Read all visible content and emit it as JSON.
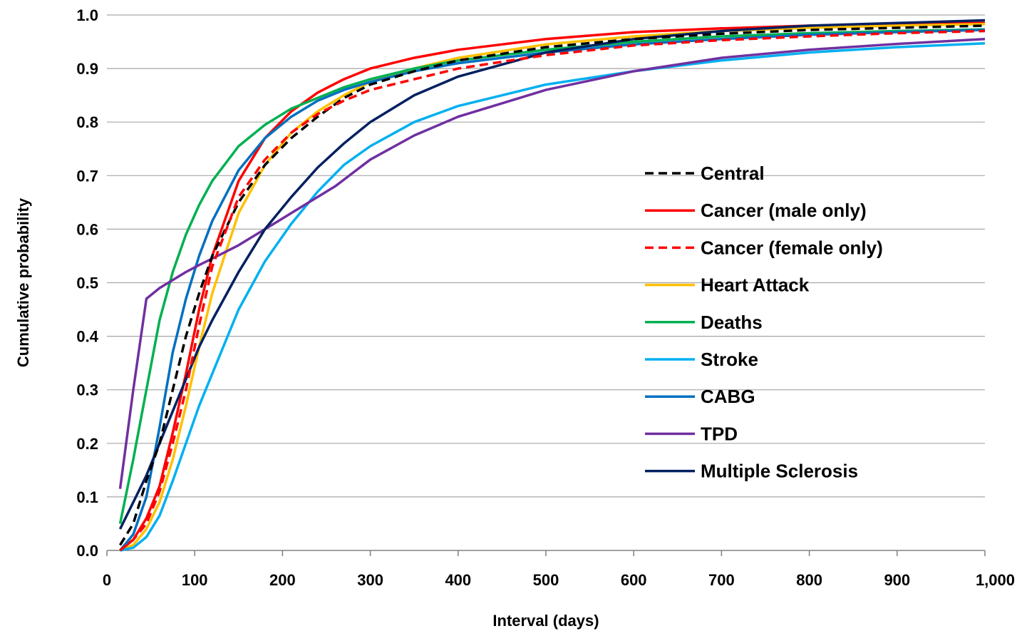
{
  "chart_data": {
    "type": "line",
    "title": "",
    "xlabel": "Interval (days)",
    "ylabel": "Cumulative probability",
    "xlim": [
      0,
      1000
    ],
    "ylim": [
      0,
      1.0
    ],
    "x_ticks": [
      "0",
      "100",
      "200",
      "300",
      "400",
      "500",
      "600",
      "700",
      "800",
      "900",
      "1,000"
    ],
    "y_ticks": [
      "0.0",
      "0.1",
      "0.2",
      "0.3",
      "0.4",
      "0.5",
      "0.6",
      "0.7",
      "0.8",
      "0.9",
      "1.0"
    ],
    "grid": "horizontal",
    "legend_position": "right",
    "series": [
      {
        "name": "Central",
        "color": "#000000",
        "dash": "dashed",
        "points": [
          [
            15,
            0.01
          ],
          [
            30,
            0.05
          ],
          [
            45,
            0.13
          ],
          [
            60,
            0.2
          ],
          [
            75,
            0.3
          ],
          [
            90,
            0.4
          ],
          [
            105,
            0.48
          ],
          [
            120,
            0.55
          ],
          [
            150,
            0.65
          ],
          [
            180,
            0.72
          ],
          [
            210,
            0.77
          ],
          [
            240,
            0.81
          ],
          [
            270,
            0.845
          ],
          [
            300,
            0.87
          ],
          [
            350,
            0.895
          ],
          [
            400,
            0.915
          ],
          [
            500,
            0.94
          ],
          [
            600,
            0.955
          ],
          [
            700,
            0.965
          ],
          [
            800,
            0.972
          ],
          [
            900,
            0.976
          ],
          [
            1000,
            0.98
          ]
        ]
      },
      {
        "name": "Cancer (male only)",
        "color": "#ff0000",
        "dash": "solid",
        "points": [
          [
            15,
            0.0
          ],
          [
            30,
            0.02
          ],
          [
            45,
            0.06
          ],
          [
            60,
            0.12
          ],
          [
            75,
            0.22
          ],
          [
            90,
            0.33
          ],
          [
            105,
            0.45
          ],
          [
            120,
            0.55
          ],
          [
            150,
            0.69
          ],
          [
            180,
            0.77
          ],
          [
            210,
            0.82
          ],
          [
            240,
            0.855
          ],
          [
            270,
            0.88
          ],
          [
            300,
            0.9
          ],
          [
            350,
            0.92
          ],
          [
            400,
            0.935
          ],
          [
            500,
            0.955
          ],
          [
            600,
            0.968
          ],
          [
            700,
            0.975
          ],
          [
            800,
            0.98
          ],
          [
            900,
            0.983
          ],
          [
            1000,
            0.985
          ]
        ]
      },
      {
        "name": "Cancer (female only)",
        "color": "#ff0000",
        "dash": "dashed",
        "points": [
          [
            15,
            0.0
          ],
          [
            30,
            0.02
          ],
          [
            45,
            0.05
          ],
          [
            60,
            0.11
          ],
          [
            75,
            0.2
          ],
          [
            90,
            0.3
          ],
          [
            105,
            0.42
          ],
          [
            120,
            0.53
          ],
          [
            150,
            0.66
          ],
          [
            180,
            0.73
          ],
          [
            210,
            0.78
          ],
          [
            240,
            0.815
          ],
          [
            270,
            0.84
          ],
          [
            300,
            0.86
          ],
          [
            350,
            0.88
          ],
          [
            400,
            0.9
          ],
          [
            500,
            0.925
          ],
          [
            600,
            0.943
          ],
          [
            700,
            0.953
          ],
          [
            800,
            0.96
          ],
          [
            900,
            0.966
          ],
          [
            1000,
            0.97
          ]
        ]
      },
      {
        "name": "Heart Attack",
        "color": "#ffc000",
        "dash": "solid",
        "points": [
          [
            15,
            0.0
          ],
          [
            30,
            0.01
          ],
          [
            45,
            0.04
          ],
          [
            60,
            0.09
          ],
          [
            75,
            0.17
          ],
          [
            90,
            0.27
          ],
          [
            105,
            0.38
          ],
          [
            120,
            0.48
          ],
          [
            150,
            0.63
          ],
          [
            180,
            0.72
          ],
          [
            210,
            0.78
          ],
          [
            240,
            0.82
          ],
          [
            270,
            0.85
          ],
          [
            300,
            0.875
          ],
          [
            350,
            0.9
          ],
          [
            400,
            0.92
          ],
          [
            500,
            0.945
          ],
          [
            600,
            0.96
          ],
          [
            700,
            0.97
          ],
          [
            800,
            0.976
          ],
          [
            900,
            0.98
          ],
          [
            1000,
            0.983
          ]
        ]
      },
      {
        "name": "Deaths",
        "color": "#00b050",
        "dash": "solid",
        "points": [
          [
            15,
            0.05
          ],
          [
            30,
            0.17
          ],
          [
            45,
            0.3
          ],
          [
            60,
            0.43
          ],
          [
            75,
            0.52
          ],
          [
            90,
            0.59
          ],
          [
            105,
            0.645
          ],
          [
            120,
            0.69
          ],
          [
            150,
            0.755
          ],
          [
            180,
            0.795
          ],
          [
            210,
            0.825
          ],
          [
            240,
            0.845
          ],
          [
            270,
            0.865
          ],
          [
            300,
            0.88
          ],
          [
            350,
            0.9
          ],
          [
            400,
            0.915
          ],
          [
            500,
            0.935
          ],
          [
            600,
            0.95
          ],
          [
            700,
            0.96
          ],
          [
            800,
            0.966
          ],
          [
            900,
            0.97
          ],
          [
            1000,
            0.973
          ]
        ]
      },
      {
        "name": "Stroke",
        "color": "#00b0f0",
        "dash": "solid",
        "points": [
          [
            15,
            0.0
          ],
          [
            30,
            0.005
          ],
          [
            45,
            0.025
          ],
          [
            60,
            0.065
          ],
          [
            75,
            0.13
          ],
          [
            90,
            0.2
          ],
          [
            105,
            0.27
          ],
          [
            120,
            0.33
          ],
          [
            150,
            0.45
          ],
          [
            180,
            0.54
          ],
          [
            210,
            0.61
          ],
          [
            240,
            0.67
          ],
          [
            270,
            0.72
          ],
          [
            300,
            0.755
          ],
          [
            350,
            0.8
          ],
          [
            400,
            0.83
          ],
          [
            500,
            0.87
          ],
          [
            600,
            0.895
          ],
          [
            700,
            0.915
          ],
          [
            800,
            0.93
          ],
          [
            900,
            0.94
          ],
          [
            1000,
            0.947
          ]
        ]
      },
      {
        "name": "CABG",
        "color": "#0070c0",
        "dash": "solid",
        "points": [
          [
            15,
            0.0
          ],
          [
            30,
            0.03
          ],
          [
            45,
            0.1
          ],
          [
            60,
            0.23
          ],
          [
            75,
            0.37
          ],
          [
            90,
            0.47
          ],
          [
            105,
            0.55
          ],
          [
            120,
            0.615
          ],
          [
            150,
            0.71
          ],
          [
            180,
            0.77
          ],
          [
            210,
            0.81
          ],
          [
            240,
            0.84
          ],
          [
            270,
            0.86
          ],
          [
            300,
            0.875
          ],
          [
            350,
            0.895
          ],
          [
            400,
            0.91
          ],
          [
            500,
            0.93
          ],
          [
            600,
            0.945
          ],
          [
            700,
            0.955
          ],
          [
            800,
            0.963
          ],
          [
            900,
            0.968
          ],
          [
            1000,
            0.972
          ]
        ]
      },
      {
        "name": "TPD",
        "color": "#7030a0",
        "dash": "solid",
        "points": [
          [
            15,
            0.115
          ],
          [
            30,
            0.3
          ],
          [
            45,
            0.47
          ],
          [
            60,
            0.49
          ],
          [
            75,
            0.505
          ],
          [
            90,
            0.52
          ],
          [
            105,
            0.533
          ],
          [
            120,
            0.545
          ],
          [
            150,
            0.57
          ],
          [
            180,
            0.6
          ],
          [
            210,
            0.63
          ],
          [
            240,
            0.66
          ],
          [
            260,
            0.68
          ],
          [
            300,
            0.73
          ],
          [
            350,
            0.775
          ],
          [
            400,
            0.81
          ],
          [
            500,
            0.86
          ],
          [
            600,
            0.895
          ],
          [
            700,
            0.92
          ],
          [
            800,
            0.935
          ],
          [
            900,
            0.946
          ],
          [
            1000,
            0.955
          ]
        ]
      },
      {
        "name": "Multiple Sclerosis",
        "color": "#002060",
        "dash": "solid",
        "points": [
          [
            15,
            0.04
          ],
          [
            30,
            0.09
          ],
          [
            45,
            0.14
          ],
          [
            60,
            0.2
          ],
          [
            75,
            0.26
          ],
          [
            90,
            0.32
          ],
          [
            105,
            0.38
          ],
          [
            120,
            0.43
          ],
          [
            150,
            0.52
          ],
          [
            180,
            0.6
          ],
          [
            210,
            0.66
          ],
          [
            240,
            0.715
          ],
          [
            270,
            0.76
          ],
          [
            300,
            0.8
          ],
          [
            350,
            0.85
          ],
          [
            400,
            0.885
          ],
          [
            500,
            0.93
          ],
          [
            600,
            0.955
          ],
          [
            700,
            0.97
          ],
          [
            800,
            0.98
          ],
          [
            900,
            0.985
          ],
          [
            1000,
            0.99
          ]
        ]
      }
    ]
  }
}
